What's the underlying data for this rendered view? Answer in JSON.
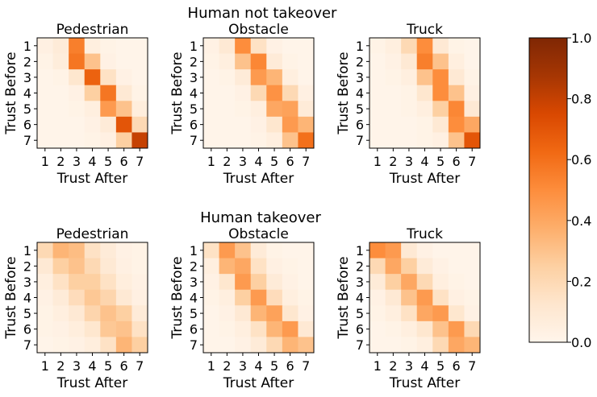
{
  "colormap": {
    "name": "Oranges",
    "stops": [
      "#fff5eb",
      "#fee6ce",
      "#fdd0a2",
      "#fdae6b",
      "#fd8d3c",
      "#f16913",
      "#d94801",
      "#a63603",
      "#7f2704"
    ]
  },
  "colorbar": {
    "min": 0.0,
    "max": 1.0,
    "tick_values": [
      0.0,
      0.2,
      0.4,
      0.6,
      0.8,
      1.0
    ],
    "tick_labels": [
      "0.0",
      "0.2",
      "0.4",
      "0.6",
      "0.8",
      "1.0"
    ]
  },
  "groups": [
    {
      "title": "Human not takeover"
    },
    {
      "title": "Human takeover"
    }
  ],
  "chart_data": [
    {
      "type": "heatmap",
      "group": "Human not takeover",
      "title": "Pedestrian",
      "xlabel": "Trust After",
      "ylabel": "Trust Before",
      "x_ticks": [
        "1",
        "2",
        "3",
        "4",
        "5",
        "6",
        "7"
      ],
      "y_ticks": [
        "1",
        "2",
        "3",
        "4",
        "5",
        "6",
        "7"
      ],
      "z": [
        [
          0.04,
          0.08,
          0.55,
          0.05,
          0.02,
          0.01,
          0.01
        ],
        [
          0.02,
          0.07,
          0.58,
          0.3,
          0.03,
          0.01,
          0.01
        ],
        [
          0.01,
          0.02,
          0.12,
          0.65,
          0.15,
          0.03,
          0.01
        ],
        [
          0.01,
          0.01,
          0.03,
          0.25,
          0.58,
          0.1,
          0.02
        ],
        [
          0.01,
          0.01,
          0.02,
          0.05,
          0.45,
          0.3,
          0.06
        ],
        [
          0.01,
          0.01,
          0.01,
          0.03,
          0.08,
          0.7,
          0.2
        ],
        [
          0.01,
          0.01,
          0.01,
          0.02,
          0.04,
          0.25,
          0.8
        ]
      ]
    },
    {
      "type": "heatmap",
      "group": "Human not takeover",
      "title": "Obstacle",
      "xlabel": "Trust After",
      "ylabel": "Trust Before",
      "x_ticks": [
        "1",
        "2",
        "3",
        "4",
        "5",
        "6",
        "7"
      ],
      "y_ticks": [
        "1",
        "2",
        "3",
        "4",
        "5",
        "6",
        "7"
      ],
      "z": [
        [
          0.03,
          0.1,
          0.5,
          0.15,
          0.03,
          0.01,
          0.01
        ],
        [
          0.02,
          0.05,
          0.3,
          0.52,
          0.08,
          0.02,
          0.01
        ],
        [
          0.01,
          0.02,
          0.08,
          0.45,
          0.35,
          0.05,
          0.01
        ],
        [
          0.01,
          0.01,
          0.03,
          0.2,
          0.48,
          0.2,
          0.04
        ],
        [
          0.01,
          0.01,
          0.02,
          0.05,
          0.4,
          0.42,
          0.08
        ],
        [
          0.01,
          0.01,
          0.01,
          0.03,
          0.12,
          0.45,
          0.35
        ],
        [
          0.01,
          0.01,
          0.01,
          0.02,
          0.05,
          0.3,
          0.6
        ]
      ]
    },
    {
      "type": "heatmap",
      "group": "Human not takeover",
      "title": "Truck",
      "xlabel": "Trust After",
      "ylabel": "Trust Before",
      "x_ticks": [
        "1",
        "2",
        "3",
        "4",
        "5",
        "6",
        "7"
      ],
      "y_ticks": [
        "1",
        "2",
        "3",
        "4",
        "5",
        "6",
        "7"
      ],
      "z": [
        [
          0.02,
          0.05,
          0.2,
          0.5,
          0.1,
          0.02,
          0.01
        ],
        [
          0.01,
          0.03,
          0.1,
          0.55,
          0.3,
          0.05,
          0.01
        ],
        [
          0.01,
          0.02,
          0.05,
          0.3,
          0.5,
          0.1,
          0.02
        ],
        [
          0.01,
          0.01,
          0.02,
          0.12,
          0.5,
          0.3,
          0.04
        ],
        [
          0.01,
          0.01,
          0.02,
          0.05,
          0.25,
          0.52,
          0.1
        ],
        [
          0.01,
          0.01,
          0.01,
          0.02,
          0.1,
          0.5,
          0.4
        ],
        [
          0.01,
          0.01,
          0.01,
          0.02,
          0.04,
          0.3,
          0.7
        ]
      ]
    },
    {
      "type": "heatmap",
      "group": "Human takeover",
      "title": "Pedestrian",
      "xlabel": "Trust After",
      "ylabel": "Trust Before",
      "x_ticks": [
        "1",
        "2",
        "3",
        "4",
        "5",
        "6",
        "7"
      ],
      "y_ticks": [
        "1",
        "2",
        "3",
        "4",
        "5",
        "6",
        "7"
      ],
      "z": [
        [
          0.2,
          0.35,
          0.32,
          0.15,
          0.08,
          0.03,
          0.02
        ],
        [
          0.1,
          0.25,
          0.3,
          0.2,
          0.1,
          0.04,
          0.02
        ],
        [
          0.05,
          0.15,
          0.25,
          0.25,
          0.15,
          0.06,
          0.03
        ],
        [
          0.03,
          0.08,
          0.18,
          0.28,
          0.22,
          0.1,
          0.04
        ],
        [
          0.02,
          0.05,
          0.1,
          0.22,
          0.3,
          0.25,
          0.08
        ],
        [
          0.02,
          0.03,
          0.06,
          0.12,
          0.28,
          0.3,
          0.15
        ],
        [
          0.01,
          0.02,
          0.03,
          0.06,
          0.15,
          0.35,
          0.25
        ]
      ]
    },
    {
      "type": "heatmap",
      "group": "Human takeover",
      "title": "Obstacle",
      "xlabel": "Trust After",
      "ylabel": "Trust Before",
      "x_ticks": [
        "1",
        "2",
        "3",
        "4",
        "5",
        "6",
        "7"
      ],
      "y_ticks": [
        "1",
        "2",
        "3",
        "4",
        "5",
        "6",
        "7"
      ],
      "z": [
        [
          0.15,
          0.45,
          0.3,
          0.08,
          0.02,
          0.01,
          0.01
        ],
        [
          0.05,
          0.35,
          0.4,
          0.15,
          0.04,
          0.02,
          0.01
        ],
        [
          0.03,
          0.12,
          0.45,
          0.25,
          0.08,
          0.03,
          0.01
        ],
        [
          0.02,
          0.05,
          0.25,
          0.45,
          0.18,
          0.05,
          0.02
        ],
        [
          0.01,
          0.03,
          0.1,
          0.35,
          0.42,
          0.12,
          0.03
        ],
        [
          0.01,
          0.02,
          0.05,
          0.15,
          0.35,
          0.45,
          0.1
        ],
        [
          0.01,
          0.01,
          0.03,
          0.08,
          0.2,
          0.35,
          0.3
        ]
      ]
    },
    {
      "type": "heatmap",
      "group": "Human takeover",
      "title": "Truck",
      "xlabel": "Trust After",
      "ylabel": "Trust Before",
      "x_ticks": [
        "1",
        "2",
        "3",
        "4",
        "5",
        "6",
        "7"
      ],
      "y_ticks": [
        "1",
        "2",
        "3",
        "4",
        "5",
        "6",
        "7"
      ],
      "z": [
        [
          0.5,
          0.45,
          0.1,
          0.03,
          0.01,
          0.01,
          0.01
        ],
        [
          0.2,
          0.4,
          0.25,
          0.08,
          0.03,
          0.01,
          0.01
        ],
        [
          0.08,
          0.25,
          0.4,
          0.2,
          0.05,
          0.02,
          0.01
        ],
        [
          0.03,
          0.1,
          0.3,
          0.45,
          0.15,
          0.04,
          0.02
        ],
        [
          0.02,
          0.05,
          0.15,
          0.4,
          0.45,
          0.12,
          0.03
        ],
        [
          0.01,
          0.02,
          0.05,
          0.12,
          0.3,
          0.45,
          0.2
        ],
        [
          0.01,
          0.01,
          0.02,
          0.05,
          0.2,
          0.4,
          0.35
        ]
      ]
    }
  ]
}
